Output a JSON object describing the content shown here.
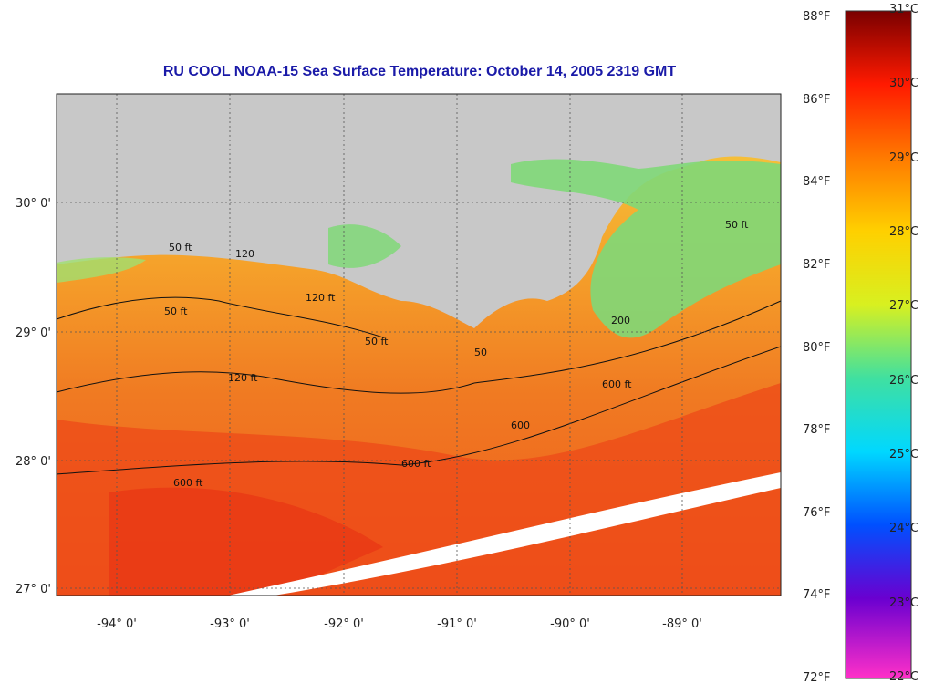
{
  "title": "RU COOL  NOAA-15  Sea Surface Temperature:  October 14, 2005 2319 GMT",
  "axes": {
    "lon_labels": [
      "-94° 0'",
      "-93° 0'",
      "-92° 0'",
      "-91° 0'",
      "-90° 0'",
      "-89° 0'"
    ],
    "lat_labels": [
      "30° 0'",
      "29° 0'",
      "28° 0'",
      "27° 0'"
    ]
  },
  "contour_labels": [
    "50 ft",
    "120",
    "120 ft",
    "50 ft",
    "50 ft",
    "120 ft",
    "600 ft",
    "600 ft",
    "600 ft",
    "50",
    "200",
    "600",
    "50 ft"
  ],
  "colorbar": {
    "fahrenheit": [
      "88°F",
      "86°F",
      "84°F",
      "82°F",
      "80°F",
      "78°F",
      "76°F",
      "74°F",
      "72°F"
    ],
    "celsius": [
      "31°C",
      "30°C",
      "29°C",
      "28°C",
      "27°C",
      "26°C",
      "25°C",
      "24°C",
      "23°C",
      "22°C"
    ],
    "range_c": [
      22,
      31
    ],
    "range_f": [
      72,
      88
    ]
  },
  "colors": {
    "title": "#1a1aa8",
    "land": "#c8c8c8",
    "warm": "#f04818",
    "mid": "#f5a623",
    "cool": "#e8e030",
    "shelf": "#8be08a"
  }
}
